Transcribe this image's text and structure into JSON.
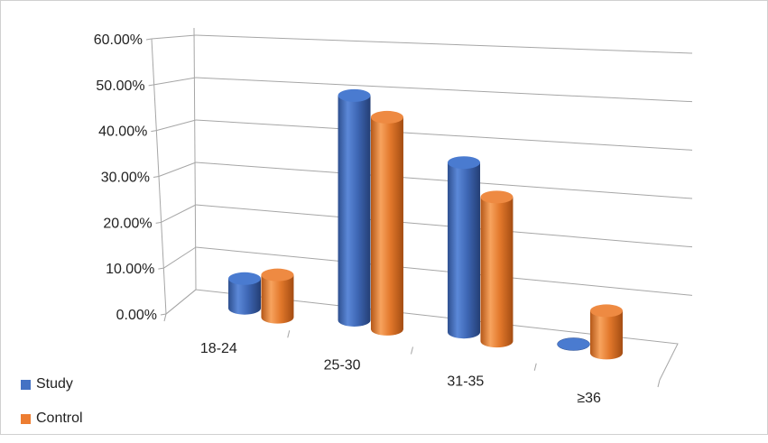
{
  "chart_data": {
    "type": "bar",
    "style": "3d-cylinder",
    "categories": [
      "18-24",
      "25-30",
      "31-35",
      "≥36"
    ],
    "series": [
      {
        "name": "Study",
        "color": "#4472C4",
        "values": [
          7.0,
          53.0,
          40.0,
          0.0
        ]
      },
      {
        "name": "Control",
        "color": "#ED7D31",
        "values": [
          10.0,
          50.0,
          34.0,
          10.0
        ]
      }
    ],
    "y_ticks": [
      "0.00%",
      "10.00%",
      "20.00%",
      "30.00%",
      "40.00%",
      "50.00%",
      "60.00%"
    ],
    "ylim": [
      0,
      60
    ],
    "title": "",
    "xlabel": "",
    "ylabel": "",
    "grid": true,
    "legend_position": "bottom-left"
  }
}
